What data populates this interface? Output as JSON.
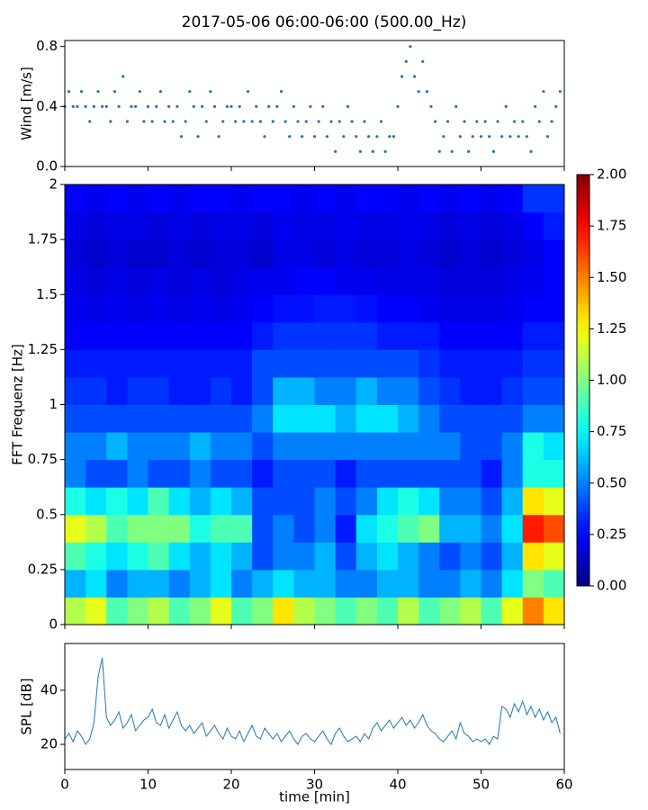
{
  "title": "2017-05-06 06:00-06:00 (500.00_Hz)",
  "chart_data": [
    {
      "type": "scatter",
      "ylabel": "Wind [m/s]",
      "color": "#1f77b4",
      "xlim": [
        0,
        60
      ],
      "xticks": [
        0,
        10,
        20,
        30,
        40,
        50,
        60
      ],
      "ylim": [
        0,
        0.84
      ],
      "yticks": [
        {
          "value": 0,
          "label": "0.0"
        },
        0.4,
        0.8
      ],
      "x": [
        0,
        0.5,
        1,
        1.5,
        2,
        2.5,
        3,
        3.5,
        4,
        4.5,
        5,
        5.5,
        6,
        6.5,
        7,
        7.5,
        8,
        8.5,
        9,
        9.5,
        10,
        10.5,
        11,
        11.5,
        12,
        12.5,
        13,
        13.5,
        14,
        14.5,
        15,
        15.5,
        16,
        16.5,
        17,
        17.5,
        18,
        18.5,
        19,
        19.5,
        20,
        20.5,
        21,
        21.5,
        22,
        22.5,
        23,
        23.5,
        24,
        24.5,
        25,
        25.5,
        26,
        26.5,
        27,
        27.5,
        28,
        28.5,
        29,
        29.5,
        30,
        30.5,
        31,
        31.5,
        32,
        32.5,
        33,
        33.5,
        34,
        34.5,
        35,
        35.5,
        36,
        36.5,
        37,
        37.5,
        38,
        38.5,
        39,
        39.5,
        40,
        40.5,
        41,
        41.5,
        42,
        42.5,
        43,
        43.5,
        44,
        44.5,
        45,
        45.5,
        46,
        46.5,
        47,
        47.5,
        48,
        48.5,
        49,
        49.5,
        50,
        50.5,
        51,
        51.5,
        52,
        52.5,
        53,
        53.5,
        54,
        54.5,
        55,
        55.5,
        56,
        56.5,
        57,
        57.5,
        58,
        58.5,
        59,
        59.5
      ],
      "values": [
        0.4,
        0.5,
        0.4,
        0.4,
        0.5,
        0.4,
        0.3,
        0.4,
        0.5,
        0.4,
        0.4,
        0.3,
        0.5,
        0.4,
        0.6,
        0.3,
        0.4,
        0.4,
        0.5,
        0.3,
        0.4,
        0.3,
        0.4,
        0.5,
        0.3,
        0.4,
        0.3,
        0.4,
        0.2,
        0.3,
        0.5,
        0.4,
        0.2,
        0.4,
        0.3,
        0.5,
        0.4,
        0.2,
        0.3,
        0.4,
        0.4,
        0.3,
        0.4,
        0.3,
        0.5,
        0.3,
        0.4,
        0.3,
        0.2,
        0.4,
        0.3,
        0.4,
        0.5,
        0.3,
        0.2,
        0.4,
        0.3,
        0.2,
        0.3,
        0.4,
        0.2,
        0.3,
        0.4,
        0.2,
        0.3,
        0.1,
        0.3,
        0.2,
        0.4,
        0.3,
        0.2,
        0.1,
        0.3,
        0.2,
        0.1,
        0.2,
        0.3,
        0.1,
        0.2,
        0.2,
        0.4,
        0.6,
        0.7,
        0.8,
        0.6,
        0.5,
        0.7,
        0.5,
        0.4,
        0.3,
        0.1,
        0.2,
        0.3,
        0.1,
        0.4,
        0.2,
        0.3,
        0.1,
        0.2,
        0.3,
        0.2,
        0.3,
        0.2,
        0.1,
        0.3,
        0.2,
        0.4,
        0.2,
        0.3,
        0.2,
        0.3,
        0.2,
        0.1,
        0.4,
        0.3,
        0.5,
        0.2,
        0.3,
        0.4,
        0.5
      ]
    },
    {
      "type": "heatmap",
      "ylabel": "FFT Frequenz [Hz]",
      "colormap": "jet",
      "xlim": [
        0,
        60
      ],
      "xticks": [
        0,
        10,
        20,
        30,
        40,
        50,
        60
      ],
      "ylim": [
        0,
        2
      ],
      "yticks": [
        0,
        0.25,
        0.5,
        0.75,
        1,
        1.25,
        1.5,
        1.75,
        2
      ],
      "zlim": [
        0,
        2
      ],
      "zticks": [
        {
          "value": 0,
          "label": "0.00"
        },
        {
          "value": 0.25,
          "label": "0.25"
        },
        {
          "value": 0.5,
          "label": "0.50"
        },
        {
          "value": 0.75,
          "label": "0.75"
        },
        {
          "value": 1,
          "label": "1.00"
        },
        {
          "value": 1.25,
          "label": "1.25"
        },
        {
          "value": 1.5,
          "label": "1.50"
        },
        {
          "value": 1.75,
          "label": "1.75"
        },
        {
          "value": 2,
          "label": "2.00"
        }
      ],
      "z": [
        [
          1.1,
          1.2,
          0.9,
          1.0,
          1.1,
          0.9,
          1.0,
          1.2,
          0.9,
          1.0,
          1.3,
          1.1,
          1.0,
          0.9,
          1.0,
          0.9,
          1.1,
          0.9,
          1.0,
          1.1,
          0.9,
          1.2,
          1.5,
          1.3
        ],
        [
          0.6,
          0.7,
          0.5,
          0.6,
          0.6,
          0.5,
          0.6,
          0.7,
          0.5,
          0.6,
          0.7,
          0.6,
          0.6,
          0.5,
          0.5,
          0.6,
          0.6,
          0.5,
          0.5,
          0.6,
          0.5,
          0.7,
          1.0,
          0.9
        ],
        [
          0.9,
          0.8,
          0.7,
          0.8,
          0.9,
          0.7,
          0.6,
          0.7,
          0.6,
          0.4,
          0.5,
          0.5,
          0.6,
          0.4,
          0.6,
          0.7,
          0.6,
          0.5,
          0.4,
          0.5,
          0.4,
          0.6,
          1.3,
          1.2
        ],
        [
          1.2,
          1.1,
          0.9,
          1.0,
          1.0,
          1.0,
          0.8,
          0.9,
          0.9,
          0.4,
          0.5,
          0.4,
          0.5,
          0.3,
          0.7,
          0.8,
          0.9,
          1.0,
          0.6,
          0.6,
          0.5,
          0.7,
          1.7,
          1.6
        ],
        [
          0.8,
          0.7,
          0.8,
          0.7,
          0.9,
          0.7,
          0.6,
          0.7,
          0.6,
          0.4,
          0.4,
          0.4,
          0.5,
          0.4,
          0.5,
          0.7,
          0.8,
          0.7,
          0.5,
          0.5,
          0.4,
          0.6,
          1.3,
          1.2
        ],
        [
          0.5,
          0.4,
          0.4,
          0.5,
          0.4,
          0.4,
          0.5,
          0.4,
          0.4,
          0.3,
          0.4,
          0.4,
          0.4,
          0.3,
          0.4,
          0.4,
          0.4,
          0.4,
          0.4,
          0.4,
          0.3,
          0.5,
          0.8,
          0.8
        ],
        [
          0.5,
          0.5,
          0.6,
          0.5,
          0.5,
          0.5,
          0.6,
          0.5,
          0.5,
          0.4,
          0.5,
          0.5,
          0.5,
          0.5,
          0.5,
          0.5,
          0.5,
          0.5,
          0.5,
          0.4,
          0.4,
          0.5,
          0.8,
          0.7
        ],
        [
          0.4,
          0.4,
          0.4,
          0.4,
          0.4,
          0.4,
          0.4,
          0.4,
          0.4,
          0.5,
          0.7,
          0.7,
          0.7,
          0.6,
          0.7,
          0.7,
          0.6,
          0.5,
          0.4,
          0.4,
          0.4,
          0.4,
          0.5,
          0.5
        ],
        [
          0.35,
          0.35,
          0.3,
          0.35,
          0.35,
          0.3,
          0.3,
          0.35,
          0.3,
          0.4,
          0.6,
          0.6,
          0.5,
          0.5,
          0.6,
          0.5,
          0.5,
          0.4,
          0.35,
          0.3,
          0.3,
          0.35,
          0.4,
          0.4
        ],
        [
          0.3,
          0.3,
          0.3,
          0.3,
          0.3,
          0.3,
          0.3,
          0.3,
          0.3,
          0.4,
          0.4,
          0.4,
          0.4,
          0.4,
          0.4,
          0.4,
          0.4,
          0.35,
          0.3,
          0.3,
          0.3,
          0.3,
          0.35,
          0.35
        ],
        [
          0.25,
          0.25,
          0.25,
          0.25,
          0.25,
          0.25,
          0.25,
          0.25,
          0.25,
          0.3,
          0.35,
          0.35,
          0.35,
          0.35,
          0.35,
          0.3,
          0.3,
          0.3,
          0.25,
          0.25,
          0.25,
          0.25,
          0.3,
          0.3
        ],
        [
          0.22,
          0.2,
          0.22,
          0.2,
          0.22,
          0.2,
          0.22,
          0.2,
          0.22,
          0.25,
          0.28,
          0.28,
          0.3,
          0.3,
          0.28,
          0.25,
          0.25,
          0.22,
          0.2,
          0.2,
          0.2,
          0.22,
          0.25,
          0.25
        ],
        [
          0.2,
          0.18,
          0.2,
          0.18,
          0.2,
          0.18,
          0.2,
          0.18,
          0.2,
          0.22,
          0.22,
          0.25,
          0.25,
          0.22,
          0.22,
          0.2,
          0.2,
          0.2,
          0.18,
          0.18,
          0.18,
          0.2,
          0.22,
          0.25
        ],
        [
          0.18,
          0.15,
          0.18,
          0.15,
          0.15,
          0.18,
          0.15,
          0.18,
          0.18,
          0.15,
          0.2,
          0.2,
          0.18,
          0.2,
          0.18,
          0.18,
          0.2,
          0.18,
          0.15,
          0.18,
          0.15,
          0.18,
          0.2,
          0.25
        ],
        [
          0.2,
          0.18,
          0.2,
          0.2,
          0.18,
          0.2,
          0.18,
          0.2,
          0.2,
          0.18,
          0.22,
          0.2,
          0.2,
          0.22,
          0.2,
          0.2,
          0.22,
          0.2,
          0.18,
          0.2,
          0.18,
          0.2,
          0.25,
          0.3
        ],
        [
          0.25,
          0.22,
          0.25,
          0.22,
          0.25,
          0.22,
          0.25,
          0.25,
          0.22,
          0.25,
          0.25,
          0.22,
          0.25,
          0.22,
          0.25,
          0.25,
          0.22,
          0.25,
          0.22,
          0.25,
          0.22,
          0.25,
          0.35,
          0.35
        ]
      ]
    },
    {
      "type": "line",
      "ylabel": "SPL [dB]",
      "xlabel": "time [min]",
      "color": "#1f77b4",
      "xlim": [
        0,
        60
      ],
      "xticks": [
        0,
        10,
        20,
        30,
        40,
        50,
        60
      ],
      "ylim": [
        10.7,
        57.3
      ],
      "yticks": [
        20,
        40
      ],
      "x": [
        0,
        0.5,
        1,
        1.5,
        2,
        2.5,
        3,
        3.5,
        4,
        4.5,
        5,
        5.5,
        6,
        6.5,
        7,
        7.5,
        8,
        8.5,
        9,
        9.5,
        10,
        10.5,
        11,
        11.5,
        12,
        12.5,
        13,
        13.5,
        14,
        14.5,
        15,
        15.5,
        16,
        16.5,
        17,
        17.5,
        18,
        18.5,
        19,
        19.5,
        20,
        20.5,
        21,
        21.5,
        22,
        22.5,
        23,
        23.5,
        24,
        24.5,
        25,
        25.5,
        26,
        26.5,
        27,
        27.5,
        28,
        28.5,
        29,
        29.5,
        30,
        30.5,
        31,
        31.5,
        32,
        32.5,
        33,
        33.5,
        34,
        34.5,
        35,
        35.5,
        36,
        36.5,
        37,
        37.5,
        38,
        38.5,
        39,
        39.5,
        40,
        40.5,
        41,
        41.5,
        42,
        42.5,
        43,
        43.5,
        44,
        44.5,
        45,
        45.5,
        46,
        46.5,
        47,
        47.5,
        48,
        48.5,
        49,
        49.5,
        50,
        50.5,
        51,
        51.5,
        52,
        52.5,
        53,
        53.5,
        54,
        54.5,
        55,
        55.5,
        56,
        56.5,
        57,
        57.5,
        58,
        58.5,
        59,
        59.5
      ],
      "values": [
        22,
        24,
        21,
        25,
        23,
        20,
        22,
        28,
        45,
        52,
        30,
        27,
        29,
        32,
        26,
        28,
        31,
        25,
        27,
        29,
        30,
        33,
        28,
        27,
        31,
        26,
        29,
        32,
        27,
        25,
        27,
        24,
        26,
        28,
        23,
        25,
        27,
        24,
        22,
        26,
        23,
        22,
        25,
        21,
        24,
        27,
        23,
        22,
        26,
        24,
        22,
        24,
        21,
        23,
        25,
        22,
        20,
        23,
        24,
        22,
        21,
        23,
        25,
        22,
        20,
        24,
        26,
        23,
        21,
        22,
        23,
        21,
        24,
        22,
        26,
        28,
        25,
        27,
        29,
        26,
        28,
        30,
        27,
        29,
        26,
        28,
        31,
        27,
        25,
        24,
        22,
        21,
        23,
        25,
        22,
        28,
        24,
        23,
        21,
        22,
        21,
        22,
        20,
        23,
        22,
        34,
        33,
        30,
        35,
        32,
        36,
        31,
        34,
        30,
        33,
        29,
        32,
        28,
        30,
        24
      ]
    }
  ]
}
